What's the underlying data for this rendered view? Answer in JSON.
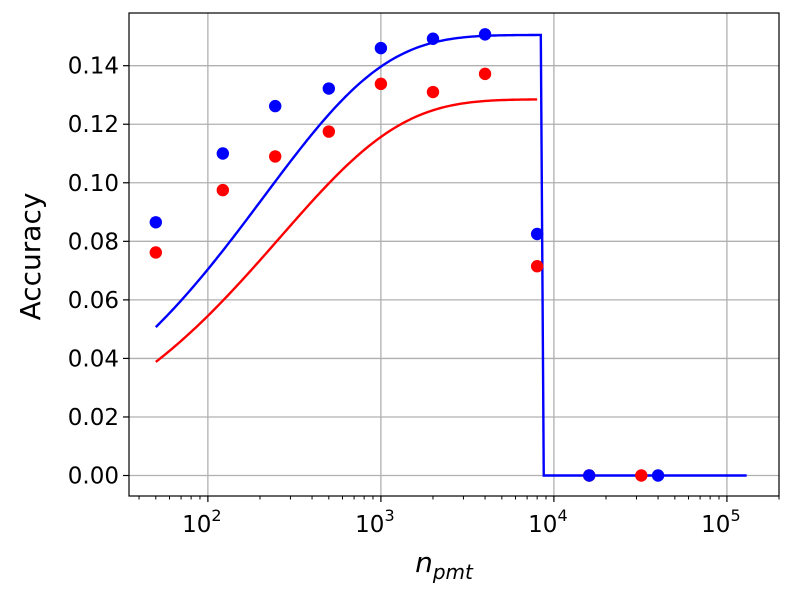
{
  "chart_data": {
    "type": "scatter",
    "xlabel": "n",
    "xlabel_subscript": "pmt",
    "ylabel": "Accuracy",
    "xscale": "log",
    "xlim": [
      35,
      200000
    ],
    "ylim": [
      -0.007,
      0.158
    ],
    "grid": true,
    "legend": "none",
    "x_ticks": [
      {
        "value": 100,
        "base": "10",
        "exp": "2"
      },
      {
        "value": 1000,
        "base": "10",
        "exp": "3"
      },
      {
        "value": 10000,
        "base": "10",
        "exp": "4"
      },
      {
        "value": 100000,
        "base": "10",
        "exp": "5"
      }
    ],
    "y_ticks": [
      {
        "value": 0.0,
        "label": "0.00"
      },
      {
        "value": 0.02,
        "label": "0.02"
      },
      {
        "value": 0.04,
        "label": "0.04"
      },
      {
        "value": 0.06,
        "label": "0.06"
      },
      {
        "value": 0.08,
        "label": "0.08"
      },
      {
        "value": 0.1,
        "label": "0.10"
      },
      {
        "value": 0.12,
        "label": "0.12"
      },
      {
        "value": 0.14,
        "label": "0.14"
      }
    ],
    "series": [
      {
        "color": "#0000ff",
        "points": [
          {
            "x": 50,
            "y": 0.0865
          },
          {
            "x": 122,
            "y": 0.11
          },
          {
            "x": 245,
            "y": 0.1262
          },
          {
            "x": 500,
            "y": 0.1322
          },
          {
            "x": 1000,
            "y": 0.146
          },
          {
            "x": 2000,
            "y": 0.1492
          },
          {
            "x": 4000,
            "y": 0.1507
          },
          {
            "x": 8000,
            "y": 0.0825
          },
          {
            "x": 16000,
            "y": 0.0
          },
          {
            "x": 40000,
            "y": 0.0
          }
        ],
        "fit": {
          "amplitude": 0.1505,
          "scale": 50,
          "cutoff": 8400,
          "x_start": 50,
          "x_end": 130000
        }
      },
      {
        "color": "#ff0000",
        "points": [
          {
            "x": 50,
            "y": 0.0762
          },
          {
            "x": 122,
            "y": 0.0975
          },
          {
            "x": 245,
            "y": 0.109
          },
          {
            "x": 500,
            "y": 0.1175
          },
          {
            "x": 1000,
            "y": 0.1338
          },
          {
            "x": 2000,
            "y": 0.131
          },
          {
            "x": 4000,
            "y": 0.1372
          },
          {
            "x": 8000,
            "y": 0.0715
          },
          {
            "x": 16000,
            "y": 0.0
          },
          {
            "x": 32000,
            "y": 0.0
          }
        ],
        "fit": {
          "amplitude": 0.1285,
          "scale": 62,
          "cutoff": 8000,
          "x_start": 50,
          "x_end": 8000
        }
      }
    ]
  }
}
